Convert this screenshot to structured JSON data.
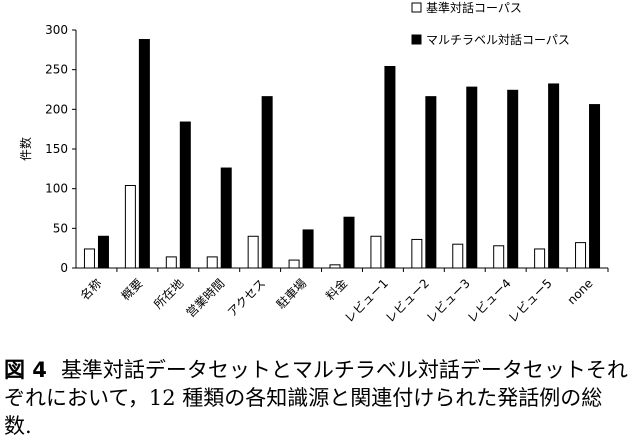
{
  "chart_data": {
    "type": "bar",
    "ylabel": "件数",
    "ylim": [
      0,
      300
    ],
    "yticks": [
      0,
      50,
      100,
      150,
      200,
      250,
      300
    ],
    "grid": false,
    "legend_position": "top-right",
    "categories": [
      "名称",
      "概要",
      "所在地",
      "営業時間",
      "アクセス",
      "駐車場",
      "料金",
      "レビュー1",
      "レビュー2",
      "レビュー3",
      "レビュー4",
      "レビュー5",
      "none"
    ],
    "series": [
      {
        "name": "基準対話コーパス",
        "color": "#ffffff",
        "values": [
          24,
          104,
          14,
          14,
          40,
          10,
          4,
          40,
          36,
          30,
          28,
          24,
          32
        ]
      },
      {
        "name": "マルチラベル対話コーパス",
        "color": "#000000",
        "values": [
          40,
          288,
          184,
          126,
          216,
          48,
          64,
          254,
          216,
          228,
          224,
          232,
          206
        ]
      }
    ]
  },
  "caption": {
    "figure_label": "図 4",
    "text": "基準対話データセットとマルチラベル対話データセットそれぞれにおいて，12 種類の各知識源と関連付けられた発話例の総数."
  }
}
